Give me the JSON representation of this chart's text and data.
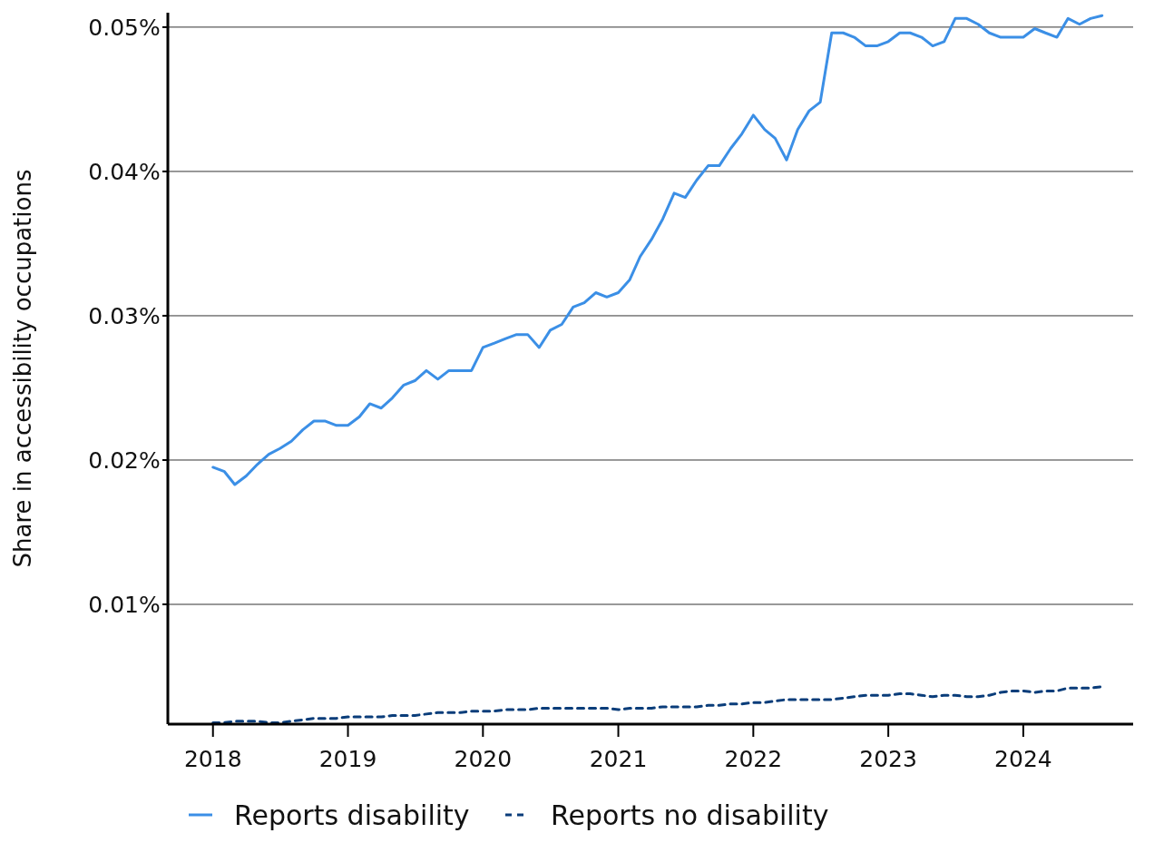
{
  "chart_data": {
    "type": "line",
    "ylabel": "Share in accessibility occupations",
    "x": [
      "2018-01",
      "2018-02",
      "2018-03",
      "2018-04",
      "2018-05",
      "2018-06",
      "2018-07",
      "2018-08",
      "2018-09",
      "2018-10",
      "2018-11",
      "2018-12",
      "2019-01",
      "2019-02",
      "2019-03",
      "2019-04",
      "2019-05",
      "2019-06",
      "2019-07",
      "2019-08",
      "2019-09",
      "2019-10",
      "2019-11",
      "2019-12",
      "2020-01",
      "2020-02",
      "2020-03",
      "2020-04",
      "2020-05",
      "2020-06",
      "2020-07",
      "2020-08",
      "2020-09",
      "2020-10",
      "2020-11",
      "2020-12",
      "2021-01",
      "2021-02",
      "2021-03",
      "2021-04",
      "2021-05",
      "2021-06",
      "2021-07",
      "2021-08",
      "2021-09",
      "2021-10",
      "2021-11",
      "2021-12",
      "2022-01",
      "2022-02",
      "2022-03",
      "2022-04",
      "2022-05",
      "2022-06",
      "2022-07",
      "2022-08",
      "2022-09",
      "2022-10",
      "2022-11",
      "2022-12",
      "2023-01",
      "2023-02",
      "2023-03",
      "2023-04",
      "2023-05",
      "2023-06",
      "2023-07",
      "2023-08",
      "2023-09",
      "2023-10",
      "2023-11",
      "2023-12",
      "2024-01",
      "2024-02",
      "2024-03",
      "2024-04",
      "2024-05",
      "2024-06",
      "2024-07",
      "2024-08"
    ],
    "series": [
      {
        "name": "Reports disability",
        "color": "#3b8fe6",
        "line_style": "solid",
        "values": [
          0.0195,
          0.0192,
          0.0183,
          0.0189,
          0.0197,
          0.0204,
          0.0208,
          0.0213,
          0.0221,
          0.0227,
          0.0227,
          0.0224,
          0.0224,
          0.023,
          0.0239,
          0.0236,
          0.0243,
          0.0252,
          0.0255,
          0.0262,
          0.0256,
          0.0262,
          0.0262,
          0.0262,
          0.0278,
          0.0281,
          0.0284,
          0.0287,
          0.0287,
          0.0278,
          0.029,
          0.0294,
          0.0306,
          0.0309,
          0.0316,
          0.0313,
          0.0316,
          0.0325,
          0.0341,
          0.0353,
          0.0367,
          0.0385,
          0.0382,
          0.0394,
          0.0404,
          0.0404,
          0.0416,
          0.0426,
          0.0439,
          0.0429,
          0.0423,
          0.0408,
          0.0429,
          0.0442,
          0.0448,
          0.0496,
          0.0496,
          0.0493,
          0.0487,
          0.0487,
          0.049,
          0.0496,
          0.0496,
          0.0493,
          0.0487,
          0.049,
          0.0506,
          0.0506,
          0.0502,
          0.0496,
          0.0493,
          0.0493,
          0.0493,
          0.0499,
          0.0496,
          0.0493,
          0.0506,
          0.0502,
          0.0506,
          0.0508
        ]
      },
      {
        "name": "Reports no disability",
        "color": "#0a3d7a",
        "line_style": "dashed",
        "values": [
          0.0018,
          0.0018,
          0.0019,
          0.0019,
          0.0019,
          0.0018,
          0.0018,
          0.0019,
          0.002,
          0.0021,
          0.0021,
          0.0021,
          0.0022,
          0.0022,
          0.0022,
          0.0022,
          0.0023,
          0.0023,
          0.0023,
          0.0024,
          0.0025,
          0.0025,
          0.0025,
          0.0026,
          0.0026,
          0.0026,
          0.0027,
          0.0027,
          0.0027,
          0.0028,
          0.0028,
          0.0028,
          0.0028,
          0.0028,
          0.0028,
          0.0028,
          0.0027,
          0.0028,
          0.0028,
          0.0028,
          0.0029,
          0.0029,
          0.0029,
          0.0029,
          0.003,
          0.003,
          0.0031,
          0.0031,
          0.0032,
          0.0032,
          0.0033,
          0.0034,
          0.0034,
          0.0034,
          0.0034,
          0.0034,
          0.0035,
          0.0036,
          0.0037,
          0.0037,
          0.0037,
          0.0038,
          0.0038,
          0.0037,
          0.0036,
          0.0037,
          0.0037,
          0.0036,
          0.0036,
          0.0037,
          0.0039,
          0.004,
          0.004,
          0.0039,
          0.004,
          0.004,
          0.0042,
          0.0042,
          0.0042,
          0.0043
        ]
      }
    ],
    "xlim": [
      "2017-09-01",
      "2024-10-24"
    ],
    "xticks": [
      {
        "value": "2018-01-01",
        "label": "2018"
      },
      {
        "value": "2019-01-01",
        "label": "2019"
      },
      {
        "value": "2020-01-01",
        "label": "2020"
      },
      {
        "value": "2021-01-01",
        "label": "2021"
      },
      {
        "value": "2022-01-01",
        "label": "2022"
      },
      {
        "value": "2023-01-01",
        "label": "2023"
      },
      {
        "value": "2024-01-01",
        "label": "2024"
      }
    ],
    "ylim": [
      0.0017,
      0.051
    ],
    "yticks": [
      {
        "value": 0.01,
        "label": "0.01%"
      },
      {
        "value": 0.02,
        "label": "0.02%"
      },
      {
        "value": 0.03,
        "label": "0.03%"
      },
      {
        "value": 0.04,
        "label": "0.04%"
      },
      {
        "value": 0.05,
        "label": "0.05%"
      }
    ],
    "grid": "y",
    "legend": "bottom",
    "marker": "none"
  }
}
